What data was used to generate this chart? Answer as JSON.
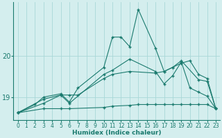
{
  "xlabel": "Humidex (Indice chaleur)",
  "background_color": "#d4eeee",
  "grid_color": "#a8d8d8",
  "line_color": "#1a7a6e",
  "xlim": [
    -0.5,
    23.5
  ],
  "ylim": [
    18.45,
    21.3
  ],
  "yticks": [
    19,
    20
  ],
  "xticks": [
    0,
    1,
    2,
    3,
    4,
    5,
    6,
    7,
    8,
    9,
    10,
    11,
    12,
    13,
    14,
    15,
    16,
    17,
    18,
    19,
    20,
    21,
    22,
    23
  ],
  "lines": [
    {
      "x": [
        0,
        2,
        3,
        5,
        6,
        7,
        10,
        11,
        12,
        13,
        14,
        16,
        17,
        18,
        19,
        21,
        22,
        23
      ],
      "y": [
        18.62,
        18.82,
        19.0,
        19.08,
        18.88,
        19.22,
        19.72,
        20.45,
        20.45,
        20.22,
        21.12,
        20.18,
        19.62,
        19.72,
        19.88,
        19.42,
        19.38,
        18.72
      ]
    },
    {
      "x": [
        0,
        3,
        5,
        6,
        10,
        11,
        13,
        14,
        15,
        16,
        17,
        18,
        19,
        20,
        21,
        22,
        23
      ],
      "y": [
        18.62,
        18.72,
        18.72,
        18.72,
        18.75,
        18.78,
        18.8,
        18.82,
        18.82,
        18.82,
        18.82,
        18.82,
        18.82,
        18.82,
        18.82,
        18.82,
        18.72
      ]
    },
    {
      "x": [
        0,
        3,
        5,
        6,
        10,
        11,
        13,
        16,
        17,
        18,
        19,
        20,
        21,
        22,
        23
      ],
      "y": [
        18.62,
        18.95,
        19.05,
        18.85,
        19.55,
        19.65,
        19.92,
        19.62,
        19.32,
        19.52,
        19.85,
        19.22,
        19.12,
        19.02,
        18.72
      ]
    },
    {
      "x": [
        0,
        3,
        5,
        6,
        7,
        10,
        11,
        13,
        16,
        17,
        18,
        19,
        20,
        21,
        22,
        23
      ],
      "y": [
        18.62,
        18.85,
        19.05,
        19.05,
        19.05,
        19.45,
        19.55,
        19.62,
        19.58,
        19.62,
        19.72,
        19.82,
        19.88,
        19.55,
        19.45,
        18.72
      ]
    }
  ]
}
